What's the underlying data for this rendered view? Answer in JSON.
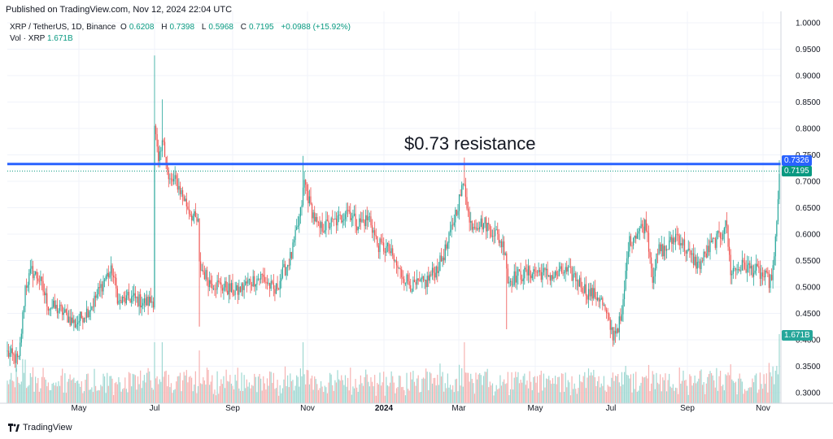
{
  "published": "Published on TradingView.com, Nov 12, 2024 22:04 UTC",
  "legend": {
    "symbol": "XRP / TetherUS, 1D, Binance",
    "open_label": "O",
    "open": "0.6208",
    "high_label": "H",
    "high": "0.7398",
    "low_label": "L",
    "low": "0.5968",
    "close_label": "C",
    "close": "0.7195",
    "change": "+0.0988 (+15.92%)"
  },
  "volume_legend": {
    "label": "Vol · XRP",
    "value": "1.671B"
  },
  "annotation": "$0.73 resistance",
  "price_tags": {
    "resistance": "0.7326",
    "last": "0.7195",
    "volume": "1.671B"
  },
  "footer_brand": "TradingView",
  "colors": {
    "up": "#26a69a",
    "down": "#ef5350",
    "resistance_line": "#2962ff",
    "last_price": "#089981",
    "volume_up": "#9fd8d2",
    "volume_down": "#f6b3b2",
    "grid": "#f0f3fa"
  },
  "chart_data": {
    "type": "candlestick",
    "title": "XRP / TetherUS, 1D, Binance",
    "y_axis": {
      "position": "right",
      "ticks": [
        "1.0000",
        "0.9500",
        "0.9000",
        "0.8500",
        "0.8000",
        "0.7500",
        "0.7000",
        "0.6500",
        "0.6000",
        "0.5500",
        "0.5000",
        "0.4500",
        "0.4000",
        "0.3500",
        "0.3000"
      ],
      "range": [
        0.295,
        1.0
      ]
    },
    "x_axis": {
      "ticks": [
        "May",
        "Jul",
        "Sep",
        "Nov",
        "2024",
        "Mar",
        "May",
        "Jul",
        "Sep",
        "Nov"
      ],
      "range": [
        "2023-03-20",
        "2024-11-12"
      ]
    },
    "resistance_level": 0.7326,
    "last_price": 0.7195,
    "anchors": [
      [
        "2023-03-20",
        0.375
      ],
      [
        "2023-03-29",
        0.36
      ],
      [
        "2023-04-03",
        0.5
      ],
      [
        "2023-04-08",
        0.53
      ],
      [
        "2023-04-14",
        0.515
      ],
      [
        "2023-04-21",
        0.465
      ],
      [
        "2023-05-01",
        0.455
      ],
      [
        "2023-05-12",
        0.43
      ],
      [
        "2023-05-25",
        0.465
      ],
      [
        "2023-06-05",
        0.52
      ],
      [
        "2023-06-10",
        0.53
      ],
      [
        "2023-06-15",
        0.47
      ],
      [
        "2023-06-25",
        0.48
      ],
      [
        "2023-07-05",
        0.47
      ],
      [
        "2023-07-12",
        0.475
      ],
      [
        "2023-07-13",
        0.81
      ],
      [
        "2023-07-16",
        0.73
      ],
      [
        "2023-07-20",
        0.78
      ],
      [
        "2023-07-24",
        0.7
      ],
      [
        "2023-07-30",
        0.7
      ],
      [
        "2023-08-10",
        0.64
      ],
      [
        "2023-08-16",
        0.62
      ],
      [
        "2023-08-17",
        0.54
      ],
      [
        "2023-08-25",
        0.51
      ],
      [
        "2023-09-05",
        0.5
      ],
      [
        "2023-09-15",
        0.49
      ],
      [
        "2023-09-25",
        0.51
      ],
      [
        "2023-10-05",
        0.52
      ],
      [
        "2023-10-15",
        0.49
      ],
      [
        "2023-10-20",
        0.52
      ],
      [
        "2023-10-28",
        0.56
      ],
      [
        "2023-11-04",
        0.64
      ],
      [
        "2023-11-07",
        0.7
      ],
      [
        "2023-11-12",
        0.65
      ],
      [
        "2023-11-18",
        0.61
      ],
      [
        "2023-11-28",
        0.62
      ],
      [
        "2023-12-06",
        0.63
      ],
      [
        "2023-12-10",
        0.65
      ],
      [
        "2023-12-18",
        0.62
      ],
      [
        "2023-12-28",
        0.63
      ],
      [
        "2024-01-03",
        0.58
      ],
      [
        "2024-01-12",
        0.57
      ],
      [
        "2024-01-20",
        0.53
      ],
      [
        "2024-01-31",
        0.5
      ],
      [
        "2024-02-10",
        0.51
      ],
      [
        "2024-02-20",
        0.54
      ],
      [
        "2024-02-27",
        0.58
      ],
      [
        "2024-03-04",
        0.64
      ],
      [
        "2024-03-11",
        0.7
      ],
      [
        "2024-03-15",
        0.62
      ],
      [
        "2024-03-27",
        0.62
      ],
      [
        "2024-04-05",
        0.6
      ],
      [
        "2024-04-12",
        0.57
      ],
      [
        "2024-04-14",
        0.51
      ],
      [
        "2024-04-20",
        0.52
      ],
      [
        "2024-05-05",
        0.53
      ],
      [
        "2024-05-20",
        0.52
      ],
      [
        "2024-05-28",
        0.53
      ],
      [
        "2024-06-05",
        0.52
      ],
      [
        "2024-06-15",
        0.49
      ],
      [
        "2024-06-25",
        0.48
      ],
      [
        "2024-07-05",
        0.41
      ],
      [
        "2024-07-12",
        0.44
      ],
      [
        "2024-07-17",
        0.58
      ],
      [
        "2024-07-22",
        0.6
      ],
      [
        "2024-07-31",
        0.62
      ],
      [
        "2024-08-05",
        0.52
      ],
      [
        "2024-08-10",
        0.57
      ],
      [
        "2024-08-15",
        0.57
      ],
      [
        "2024-08-24",
        0.6
      ],
      [
        "2024-09-03",
        0.56
      ],
      [
        "2024-09-10",
        0.54
      ],
      [
        "2024-09-20",
        0.58
      ],
      [
        "2024-09-28",
        0.6
      ],
      [
        "2024-10-01",
        0.63
      ],
      [
        "2024-10-05",
        0.53
      ],
      [
        "2024-10-15",
        0.54
      ],
      [
        "2024-10-25",
        0.53
      ],
      [
        "2024-11-05",
        0.51
      ],
      [
        "2024-11-08",
        0.55
      ],
      [
        "2024-11-10",
        0.62
      ],
      [
        "2024-11-12",
        0.72
      ]
    ]
  }
}
